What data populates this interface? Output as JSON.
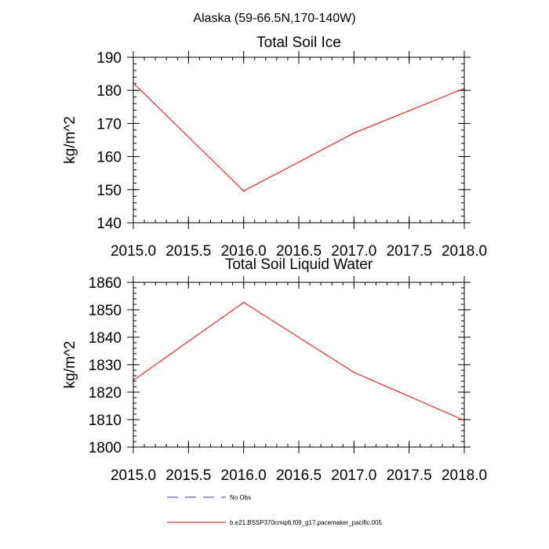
{
  "figure": {
    "suptitle": "Alaska (59-66.5N,170-140W)"
  },
  "chart_data": [
    {
      "type": "line",
      "title": "Total Soil Ice",
      "xlabel": "",
      "ylabel": "kg/m^2",
      "xlim": [
        2015.0,
        2018.0
      ],
      "ylim": [
        140,
        190
      ],
      "xticks": [
        2015.0,
        2015.5,
        2016.0,
        2016.5,
        2017.0,
        2017.5,
        2018.0
      ],
      "xtick_labels": [
        "2015.0",
        "2015.5",
        "2016.0",
        "2016.5",
        "2017.0",
        "2017.5",
        "2018.0"
      ],
      "yticks": [
        140,
        150,
        160,
        170,
        180,
        190
      ],
      "ytick_labels": [
        "140",
        "150",
        "160",
        "170",
        "180",
        "190"
      ],
      "grid": false,
      "series": [
        {
          "name": "b.e21.BSSP370cmip6.f09_g17.pacemaker_pacific.005",
          "color": "#ff0000",
          "x": [
            2015.0,
            2016.0,
            2017.0,
            2018.0
          ],
          "y": [
            182.2,
            149.6,
            167.1,
            180.6
          ]
        }
      ]
    },
    {
      "type": "line",
      "title": "Total Soil Liquid Water",
      "xlabel": "",
      "ylabel": "kg/m^2",
      "xlim": [
        2015.0,
        2018.0
      ],
      "ylim": [
        1800,
        1860
      ],
      "xticks": [
        2015.0,
        2015.5,
        2016.0,
        2016.5,
        2017.0,
        2017.5,
        2018.0
      ],
      "xtick_labels": [
        "2015.0",
        "2015.5",
        "2016.0",
        "2016.5",
        "2017.0",
        "2017.5",
        "2018.0"
      ],
      "yticks": [
        1800,
        1810,
        1820,
        1830,
        1840,
        1850,
        1860
      ],
      "ytick_labels": [
        "1800",
        "1810",
        "1820",
        "1830",
        "1840",
        "1850",
        "1860"
      ],
      "grid": false,
      "series": [
        {
          "name": "b.e21.BSSP370cmip6.f09_g17.pacemaker_pacific.005",
          "color": "#ff0000",
          "x": [
            2015.0,
            2016.0,
            2017.0,
            2018.0
          ],
          "y": [
            1824.3,
            1852.7,
            1827.2,
            1809.7
          ]
        }
      ]
    }
  ],
  "legend": {
    "placement": "bottom-center",
    "entries": [
      {
        "label": "No Obs",
        "color": "#3333aa",
        "style": "dashed"
      },
      {
        "label": "b.e21.BSSP370cmip6.f09_g17.pacemaker_pacific.005",
        "color": "#ff0000",
        "style": "solid"
      }
    ]
  }
}
